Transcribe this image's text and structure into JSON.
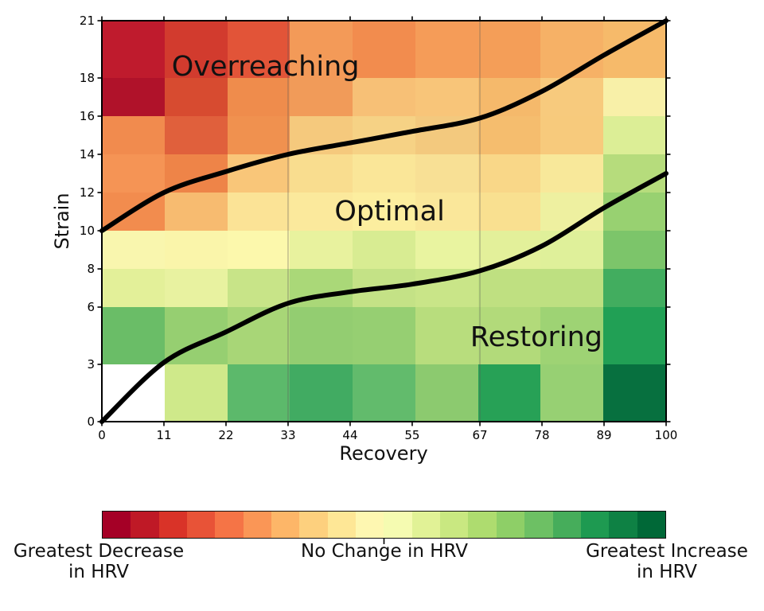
{
  "chart_data": {
    "type": "heatmap",
    "title": "",
    "xlabel": "Recovery",
    "ylabel": "Strain",
    "x_range": [
      0,
      100
    ],
    "y_range": [
      0,
      21
    ],
    "x_ticks": [
      0,
      11,
      22,
      33,
      44,
      55,
      67,
      78,
      89,
      100
    ],
    "y_ticks": [
      0,
      3,
      6,
      8,
      10,
      12,
      14,
      16,
      18,
      21
    ],
    "col_bounds": [
      0,
      11,
      22,
      33,
      44,
      55,
      67,
      78,
      89,
      100
    ],
    "row_bounds": [
      21,
      18,
      16,
      14,
      12,
      10,
      8,
      6,
      3,
      0
    ],
    "grid": "off",
    "zone_divider_x": [
      33,
      67
    ],
    "cell_colors_top_to_bottom": [
      [
        "#bf1b2d",
        "#d23b2e",
        "#e25438",
        "#f39a58",
        "#f28c4e",
        "#f59c58",
        "#f49e58",
        "#f6b166",
        "#f6ba6a"
      ],
      [
        "#b0122a",
        "#d74b30",
        "#ef8c4c",
        "#f19b59",
        "#f7c076",
        "#f8c579",
        "#f5b96b",
        "#f7ca7d",
        "#f8f0a8"
      ],
      [
        "#f18b4e",
        "#e0603c",
        "#f0914f",
        "#f5c97d",
        "#f6d285",
        "#f3c97e",
        "#f5bd6e",
        "#f7ca7c",
        "#dcee96"
      ],
      [
        "#f59455",
        "#ee8448",
        "#f9c679",
        "#f9dd8f",
        "#fae698",
        "#f8e095",
        "#f9d788",
        "#f8e89a",
        "#b6dc7c"
      ],
      [
        "#f28c4e",
        "#f7bb70",
        "#fbe396",
        "#fbe99c",
        "#fcee9f",
        "#fae79a",
        "#f9e090",
        "#eef0a0",
        "#98d171"
      ],
      [
        "#f9f6ae",
        "#faf5aa",
        "#fcf8ac",
        "#e8f29e",
        "#d8ec92",
        "#e9f4a0",
        "#e3f09a",
        "#dff09a",
        "#7cc56a"
      ],
      [
        "#e3f099",
        "#e8f2a0",
        "#c8e488",
        "#aad878",
        "#c4e286",
        "#c9e588",
        "#bfe081",
        "#bee081",
        "#42ad5f"
      ],
      [
        "#6abd67",
        "#96cf71",
        "#a8d677",
        "#93cd71",
        "#96cf72",
        "#b8dd7d",
        "#b2da7a",
        "#9ed374",
        "#21a055"
      ],
      [
        "#ffffff",
        "#cfe98a",
        "#5cb96b",
        "#41ab62",
        "#62bb6c",
        "#8cca6f",
        "#27a156",
        "#97d073",
        "#07703f"
      ]
    ],
    "zone_labels": [
      {
        "text": "Overreaching",
        "x": 29,
        "y": 18.6
      },
      {
        "text": "Optimal",
        "x": 51,
        "y": 11.0
      },
      {
        "text": "Restoring",
        "x": 77,
        "y": 4.4
      }
    ],
    "curves": {
      "upper_threshold": [
        [
          0,
          10
        ],
        [
          11,
          12.0
        ],
        [
          22,
          13.1
        ],
        [
          33,
          14.0
        ],
        [
          44,
          14.6
        ],
        [
          55,
          15.2
        ],
        [
          67,
          15.9
        ],
        [
          78,
          17.3
        ],
        [
          89,
          19.2
        ],
        [
          100,
          21
        ]
      ],
      "lower_threshold": [
        [
          0,
          0
        ],
        [
          11,
          3.1
        ],
        [
          22,
          4.7
        ],
        [
          33,
          6.2
        ],
        [
          44,
          6.8
        ],
        [
          55,
          7.2
        ],
        [
          67,
          7.9
        ],
        [
          78,
          9.2
        ],
        [
          89,
          11.2
        ],
        [
          100,
          13
        ]
      ],
      "color": "#000000"
    },
    "colorbar": {
      "segments": [
        "#a50026",
        "#bf1926",
        "#d93328",
        "#e85337",
        "#f57446",
        "#fa9656",
        "#fdb668",
        "#fdd07e",
        "#fee796",
        "#fef7b1",
        "#f5fbb1",
        "#e1f296",
        "#c9e881",
        "#aedc6f",
        "#8ecf67",
        "#6dc064",
        "#46ad5b",
        "#1e9a51",
        "#0e8144",
        "#006837"
      ],
      "label_left_line1": "Greatest Decrease",
      "label_left_line2": "in HRV",
      "label_center": "No Change in HRV",
      "label_right_line1": "Greatest Increase",
      "label_right_line2": "in HRV"
    }
  }
}
